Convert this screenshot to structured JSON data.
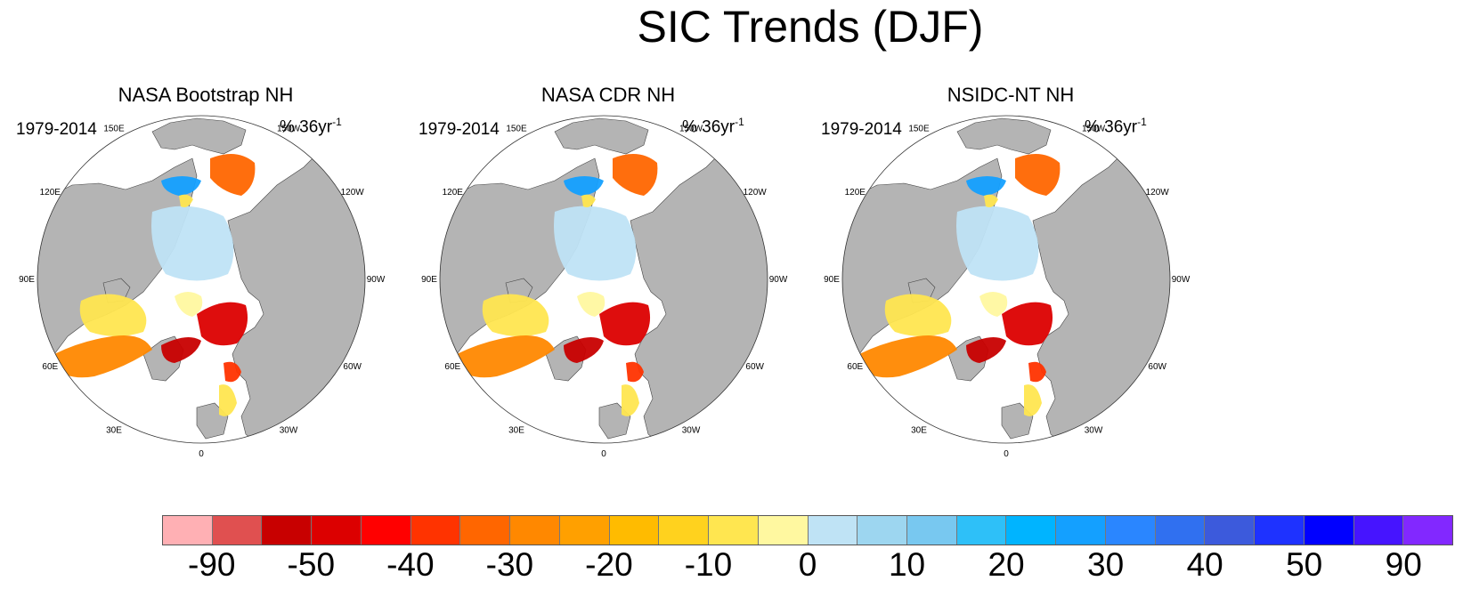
{
  "title": "SIC Trends (DJF)",
  "panels": [
    {
      "title": "NASA Bootstrap NH",
      "period": "1979-2014",
      "units": "% 36yr",
      "units_sup": "-1"
    },
    {
      "title": "NASA CDR NH",
      "period": "1979-2014",
      "units": "% 36yr",
      "units_sup": "-1"
    },
    {
      "title": "NSIDC-NT NH",
      "period": "1979-2014",
      "units": "% 36yr",
      "units_sup": "-1"
    }
  ],
  "longitude_labels": [
    "180",
    "150E",
    "120E",
    "90E",
    "60E",
    "30E",
    "0",
    "30W",
    "60W",
    "90W",
    "120W",
    "150W"
  ],
  "colorbar": {
    "colors": [
      "#ffb0b4",
      "#e05050",
      "#c80000",
      "#dc0000",
      "#ff0000",
      "#ff3300",
      "#ff6600",
      "#ff8800",
      "#ffa000",
      "#ffbb00",
      "#ffd21e",
      "#ffe650",
      "#fff8a0",
      "#bfe3f5",
      "#9dd6f0",
      "#78c8f0",
      "#2ec0f8",
      "#00b4ff",
      "#14a0ff",
      "#2a86ff",
      "#3070f0",
      "#3c5adc",
      "#1e32ff",
      "#0000ff",
      "#4614ff",
      "#8228ff"
    ],
    "tick_labels": [
      "-90",
      "-50",
      "-40",
      "-30",
      "-20",
      "-10",
      "0",
      "10",
      "20",
      "30",
      "40",
      "50",
      "90"
    ]
  },
  "map_colors": {
    "land": "#b4b4b4",
    "ocean": "#ffffff",
    "coast": "#444444"
  }
}
